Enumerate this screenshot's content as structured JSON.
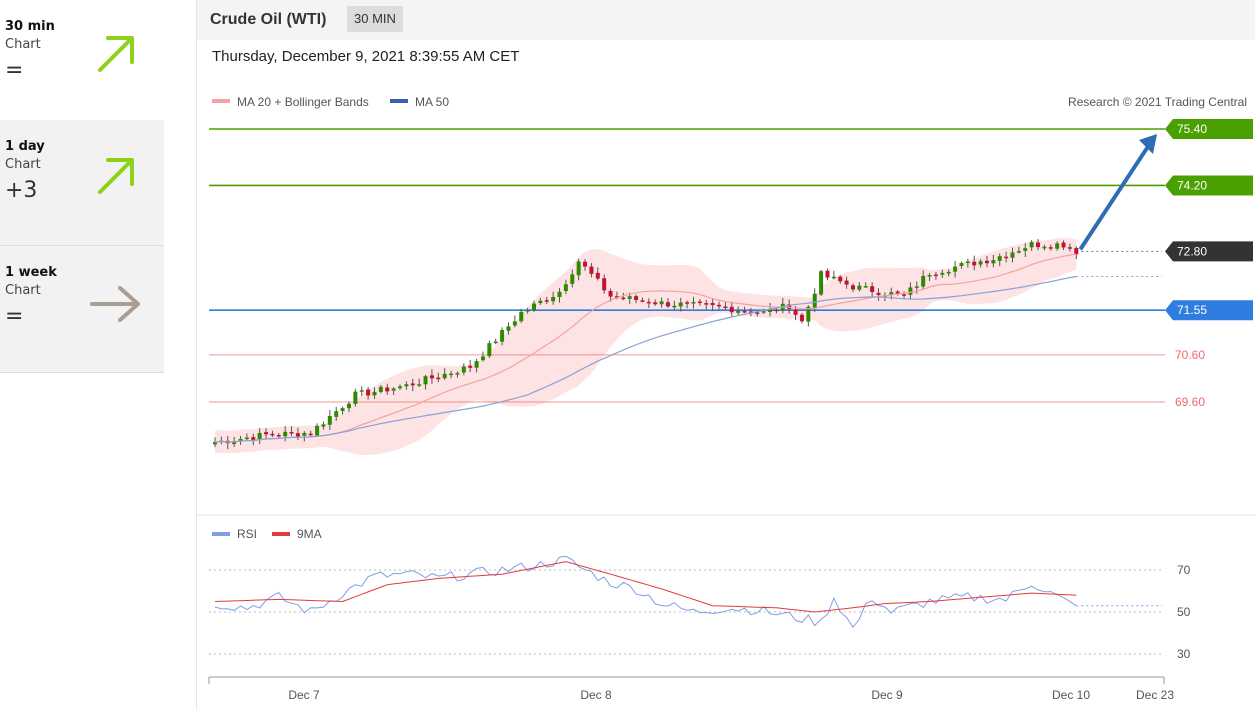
{
  "sidebar": {
    "items": [
      {
        "name": "30 min",
        "sub": "Chart",
        "score": "=",
        "direction": "up",
        "color": "#8ed11a"
      },
      {
        "name": "1 day",
        "sub": "Chart",
        "score": "+3",
        "direction": "up",
        "color": "#8ed11a"
      },
      {
        "name": "1 week",
        "sub": "Chart",
        "score": "=",
        "direction": "right",
        "color": "#a99e94"
      }
    ]
  },
  "header": {
    "title": "Crude Oil (WTI)",
    "interval": "30 MIN",
    "datetime": "Thursday, December 9, 2021 8:39:55 AM CET",
    "copyright": "Research © 2021 Trading Central"
  },
  "colors": {
    "up": "#2e8b00",
    "down": "#c8102e",
    "green_level": "#4aa000",
    "blue_level": "#2f7de1",
    "red_level": "#f06a6a",
    "ma20": "#f6a1a1",
    "ma50": "#8ba2d6",
    "band": "#fde0e0",
    "rsi": "#7f9ee6",
    "rsi9ma": "#e23b3b",
    "target_arrow": "#2e6db3"
  },
  "chart_data": [
    {
      "type": "candlestick",
      "title": "Crude Oil (WTI)",
      "legend": [
        {
          "name": "MA 20 + Bollinger Bands",
          "color": "#f6a1a1"
        },
        {
          "name": "MA 50",
          "color": "#3a5fb0"
        }
      ],
      "x_ticks": [
        "Dec 7",
        "Dec 8",
        "Dec 9",
        "Dec 10",
        "Dec 23"
      ],
      "ylim": [
        68.4,
        75.6
      ],
      "levels": [
        {
          "label": "75.40",
          "value": 75.4,
          "kind": "resistance",
          "color": "#4aa000"
        },
        {
          "label": "74.20",
          "value": 74.2,
          "kind": "resistance",
          "color": "#4aa000"
        },
        {
          "label": "72.80",
          "value": 72.8,
          "kind": "last",
          "color": "#333333"
        },
        {
          "label": "71.55",
          "value": 71.55,
          "kind": "pivot",
          "color": "#2f7de1"
        },
        {
          "label": "70.60",
          "value": 70.6,
          "kind": "support",
          "color": "#f06a6a"
        },
        {
          "label": "69.60",
          "value": 69.6,
          "kind": "support",
          "color": "#f06a6a"
        }
      ],
      "target": {
        "from": 72.8,
        "to": 75.4
      },
      "close_anchors": [
        [
          0,
          68.75
        ],
        [
          8,
          68.9
        ],
        [
          15,
          68.95
        ],
        [
          22,
          69.75
        ],
        [
          30,
          69.95
        ],
        [
          40,
          70.35
        ],
        [
          48,
          71.5
        ],
        [
          54,
          71.95
        ],
        [
          57,
          72.6
        ],
        [
          62,
          71.85
        ],
        [
          70,
          71.7
        ],
        [
          80,
          71.6
        ],
        [
          86,
          71.5
        ],
        [
          90,
          71.65
        ],
        [
          92,
          71.3
        ],
        [
          95,
          72.3
        ],
        [
          100,
          72.05
        ],
        [
          108,
          71.85
        ],
        [
          112,
          72.35
        ],
        [
          122,
          72.65
        ],
        [
          128,
          72.95
        ],
        [
          133,
          72.95
        ],
        [
          135,
          72.8
        ]
      ]
    },
    {
      "type": "line",
      "title": "RSI",
      "series": [
        {
          "name": "RSI",
          "color": "#7f9ee6"
        },
        {
          "name": "9MA",
          "color": "#e23b3b"
        }
      ],
      "y_ticks": [
        70,
        50,
        30
      ],
      "ylim": [
        20,
        80
      ],
      "rsi_anchors": [
        [
          0,
          54
        ],
        [
          5,
          52
        ],
        [
          10,
          57
        ],
        [
          15,
          50
        ],
        [
          20,
          59
        ],
        [
          25,
          67
        ],
        [
          30,
          68
        ],
        [
          35,
          66
        ],
        [
          40,
          68
        ],
        [
          45,
          70
        ],
        [
          50,
          72
        ],
        [
          55,
          75
        ],
        [
          58,
          70
        ],
        [
          62,
          64
        ],
        [
          66,
          61
        ],
        [
          70,
          54
        ],
        [
          75,
          50
        ],
        [
          80,
          52
        ],
        [
          85,
          51
        ],
        [
          90,
          48
        ],
        [
          95,
          45
        ],
        [
          97,
          57
        ],
        [
          100,
          42
        ],
        [
          103,
          57
        ],
        [
          106,
          50
        ],
        [
          112,
          55
        ],
        [
          118,
          57
        ],
        [
          124,
          56
        ],
        [
          128,
          64
        ],
        [
          131,
          59
        ],
        [
          135,
          52
        ]
      ],
      "ma9_anchors": [
        [
          0,
          55
        ],
        [
          10,
          56
        ],
        [
          20,
          55
        ],
        [
          27,
          63
        ],
        [
          35,
          66
        ],
        [
          45,
          68
        ],
        [
          55,
          74
        ],
        [
          62,
          68
        ],
        [
          70,
          61
        ],
        [
          78,
          53
        ],
        [
          88,
          52
        ],
        [
          94,
          50
        ],
        [
          100,
          52
        ],
        [
          105,
          54
        ],
        [
          112,
          55
        ],
        [
          120,
          57
        ],
        [
          128,
          59
        ],
        [
          135,
          58
        ]
      ]
    }
  ]
}
